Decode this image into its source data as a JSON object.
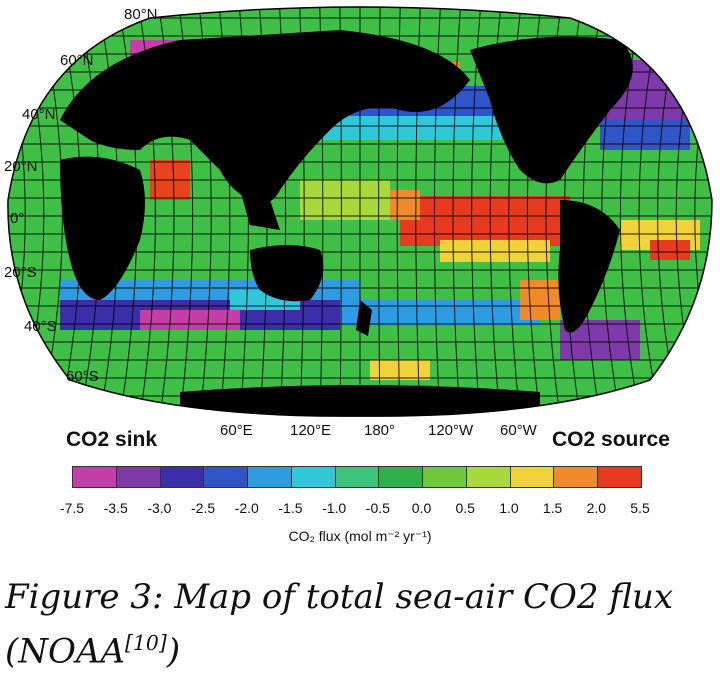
{
  "map": {
    "lat_labels": [
      "80°N",
      "60°N",
      "40°N",
      "20°N",
      "0°",
      "20°S",
      "40°S",
      "60°S"
    ],
    "lon_labels": [
      "60°E",
      "120°E",
      "180°",
      "120°W",
      "60°W"
    ],
    "sink_label": "CO2 sink",
    "source_label": "CO2 source"
  },
  "colorbar": {
    "colors": [
      "#c43ea8",
      "#7d3aa8",
      "#3b2ea8",
      "#2f55c8",
      "#2f9be0",
      "#30c8d8",
      "#3cc47a",
      "#2fb04a",
      "#6ec83a",
      "#a8d83a",
      "#f0d23a",
      "#f08a2a",
      "#e83a1e"
    ],
    "ticks": [
      "-7.5",
      "-3.5",
      "-3.0",
      "-2.5",
      "-2.0",
      "-1.5",
      "-1.0",
      "-0.5",
      "0.0",
      "0.5",
      "1.0",
      "1.5",
      "2.0",
      "5.5"
    ],
    "unit_label": "CO₂ flux (mol m⁻² yr⁻¹)"
  },
  "caption": {
    "line1": "Figure 3: Map of total sea-air CO2 flux",
    "line2_prefix": "(NOAA",
    "line2_sup": "[10]",
    "line2_suffix": ")"
  }
}
